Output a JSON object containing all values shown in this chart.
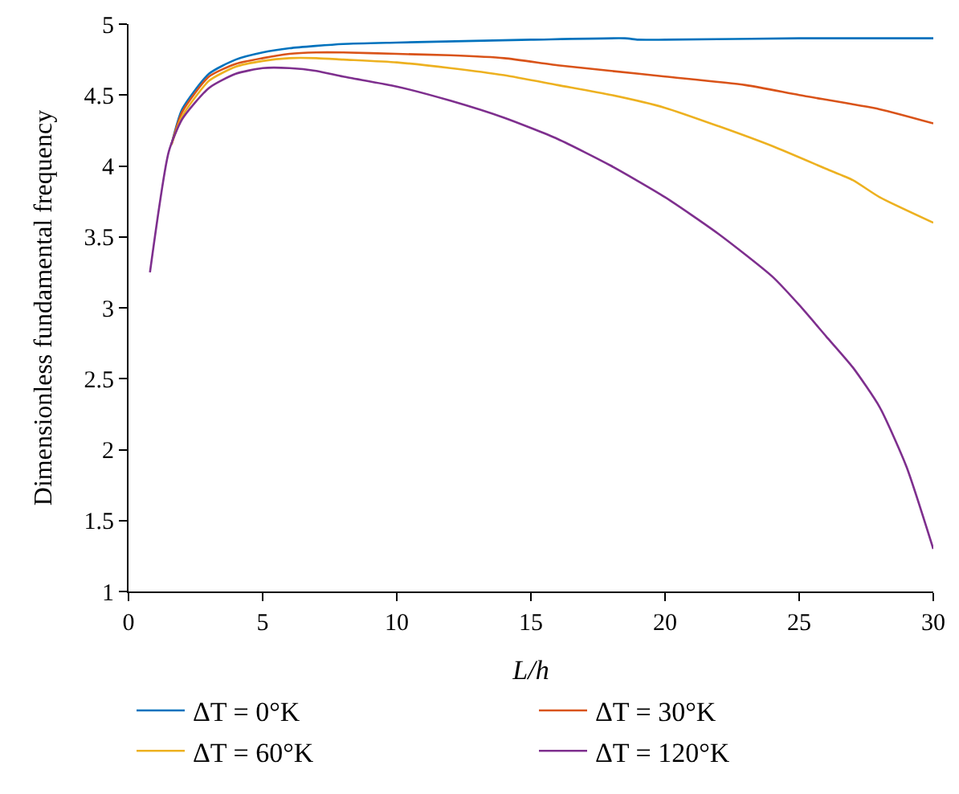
{
  "chart_data": {
    "type": "line",
    "xlabel": "L/h",
    "ylabel": "Dimensionless fundamental frequency",
    "xlim": [
      0,
      30
    ],
    "xticks": [
      0,
      5,
      10,
      15,
      20,
      25,
      30
    ],
    "ylim": [
      1,
      5
    ],
    "yticks": [
      1,
      1.5,
      2,
      2.5,
      3,
      3.5,
      4,
      4.5,
      5
    ],
    "legend": "bottom",
    "line_style": "solid",
    "marker": "none",
    "series": [
      {
        "name": "ΔT = 0°K",
        "color": "#0072bd",
        "x": [
          1.6,
          2,
          3,
          4,
          5,
          6,
          8,
          10,
          15,
          18.5,
          19,
          20,
          25,
          30
        ],
        "values": [
          4.15,
          4.4,
          4.65,
          4.75,
          4.8,
          4.83,
          4.86,
          4.87,
          4.89,
          4.9,
          4.89,
          4.89,
          4.9,
          4.9
        ]
      },
      {
        "name": "ΔT = 30°K",
        "color": "#d95319",
        "x": [
          1.6,
          2,
          3,
          4,
          5,
          6,
          7,
          8,
          10,
          12,
          14,
          16,
          18,
          20,
          23,
          25,
          28,
          30
        ],
        "values": [
          4.15,
          4.38,
          4.63,
          4.72,
          4.76,
          4.79,
          4.8,
          4.8,
          4.79,
          4.78,
          4.76,
          4.71,
          4.67,
          4.63,
          4.57,
          4.5,
          4.4,
          4.3
        ]
      },
      {
        "name": "ΔT = 60°K",
        "color": "#edb120",
        "x": [
          1.6,
          2,
          3,
          4,
          5,
          6,
          7,
          8,
          10,
          12,
          14,
          16,
          18,
          20,
          22,
          24,
          26,
          27,
          28,
          30
        ],
        "values": [
          4.15,
          4.35,
          4.6,
          4.7,
          4.74,
          4.76,
          4.76,
          4.75,
          4.73,
          4.69,
          4.64,
          4.57,
          4.5,
          4.41,
          4.28,
          4.14,
          3.98,
          3.9,
          3.78,
          3.6
        ]
      },
      {
        "name": "ΔT = 120°K",
        "color": "#7e2f8e",
        "x": [
          0.8,
          1.5,
          2,
          3,
          4,
          5,
          6,
          7,
          8,
          10,
          12,
          14,
          16,
          18,
          20,
          22,
          24,
          25,
          26,
          27,
          28,
          29,
          30
        ],
        "values": [
          3.25,
          4.1,
          4.33,
          4.55,
          4.65,
          4.69,
          4.69,
          4.67,
          4.63,
          4.56,
          4.46,
          4.34,
          4.19,
          4.0,
          3.78,
          3.52,
          3.22,
          3.02,
          2.8,
          2.58,
          2.3,
          1.88,
          1.3
        ]
      }
    ]
  }
}
